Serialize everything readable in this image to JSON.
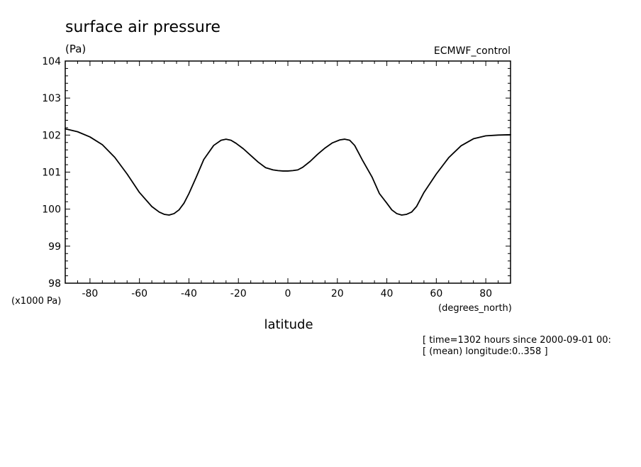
{
  "chart_data": {
    "type": "line",
    "title": "surface air pressure",
    "units": "(Pa)",
    "dataset": "ECMWF_control",
    "xlabel": "latitude",
    "x_units": "(degrees_north)",
    "y_scale_label": "(x1000 Pa)",
    "xlim": [
      -90,
      90
    ],
    "ylim": [
      98,
      104
    ],
    "x_ticks": [
      -80,
      -60,
      -40,
      -20,
      0,
      20,
      40,
      60,
      80
    ],
    "x_tick_labels": [
      "-80",
      "-60",
      "-40",
      "-20",
      "0",
      "20",
      "40",
      "60",
      "80"
    ],
    "y_ticks": [
      98,
      99,
      100,
      101,
      102,
      103,
      104
    ],
    "y_tick_labels": [
      "98",
      "99",
      "100",
      "101",
      "102",
      "103",
      "104"
    ],
    "grid": false,
    "series": [
      {
        "x": [
          -90,
          -85,
          -80,
          -75,
          -70,
          -65,
          -60,
          -55,
          -52,
          -50,
          -48,
          -46,
          -44,
          -42,
          -40,
          -37,
          -34,
          -30,
          -27,
          -25,
          -23,
          -21,
          -18,
          -15,
          -12,
          -9,
          -6,
          -4,
          -2,
          0,
          2,
          4,
          6,
          9,
          12,
          15,
          18,
          21,
          23,
          25,
          27,
          30,
          34,
          37,
          40,
          42,
          44,
          46,
          48,
          50,
          52,
          55,
          60,
          65,
          70,
          75,
          80,
          85,
          90
        ],
        "y": [
          102.17,
          102.09,
          101.95,
          101.74,
          101.4,
          100.95,
          100.45,
          100.07,
          99.92,
          99.86,
          99.84,
          99.88,
          99.98,
          100.16,
          100.42,
          100.87,
          101.34,
          101.72,
          101.86,
          101.89,
          101.86,
          101.78,
          101.63,
          101.45,
          101.27,
          101.12,
          101.06,
          101.04,
          101.03,
          101.03,
          101.04,
          101.06,
          101.13,
          101.29,
          101.48,
          101.65,
          101.79,
          101.87,
          101.89,
          101.86,
          101.72,
          101.34,
          100.87,
          100.42,
          100.16,
          99.98,
          99.88,
          99.84,
          99.86,
          99.92,
          100.07,
          100.45,
          100.95,
          101.39,
          101.71,
          101.9,
          101.98,
          102.0,
          102.01
        ]
      }
    ]
  },
  "footer": {
    "line1": "[ time=1302 hours since 2000-09-01 00:",
    "line2": "[ (mean) longitude:0..358 ]"
  }
}
